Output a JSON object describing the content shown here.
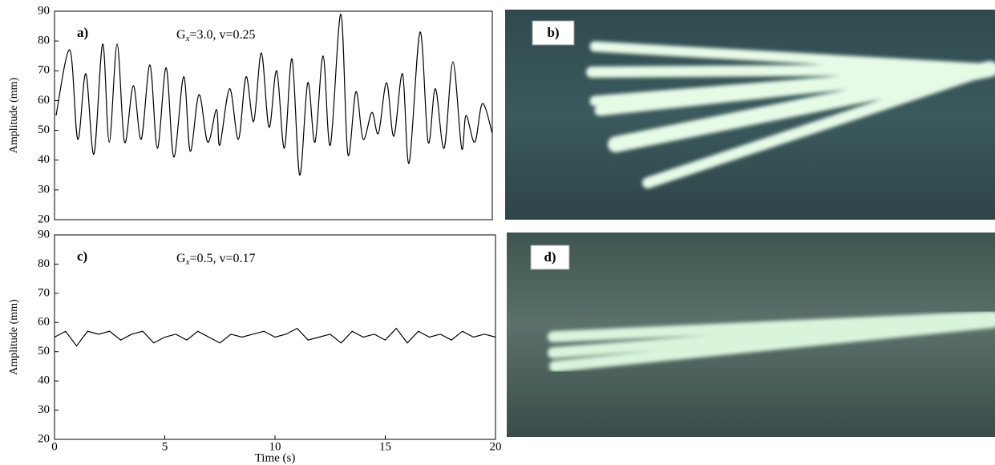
{
  "chart_data": [
    {
      "type": "line",
      "panel_label": "a)",
      "annotation": [
        "G",
        "x",
        "=3.0, v=0.25"
      ],
      "ylabel": "Amplitude (mm)",
      "xlim": [
        0,
        20
      ],
      "ylim": [
        20,
        90
      ],
      "yticks": [
        20,
        30,
        40,
        50,
        60,
        70,
        80,
        90
      ],
      "x": [
        0.07,
        0.7,
        1.06,
        1.43,
        1.8,
        2.2,
        2.5,
        2.86,
        3.2,
        3.6,
        3.96,
        4.36,
        4.7,
        5.1,
        5.45,
        5.9,
        6.2,
        6.6,
        7.0,
        7.4,
        7.55,
        8.0,
        8.4,
        8.75,
        9.1,
        9.45,
        9.8,
        10.15,
        10.5,
        10.85,
        11.2,
        11.57,
        11.9,
        12.27,
        12.6,
        13.08,
        13.4,
        13.77,
        14.1,
        14.5,
        14.8,
        15.17,
        15.5,
        15.9,
        16.2,
        16.7,
        17.07,
        17.4,
        17.8,
        18.2,
        18.6,
        18.8,
        19.2,
        19.55,
        20
      ],
      "series": [
        {
          "color": "#000000",
          "values": [
            55,
            77,
            47,
            69,
            42,
            79,
            46,
            79,
            46,
            65,
            47,
            72,
            44,
            71,
            41,
            68,
            43,
            62,
            46,
            57,
            45,
            64,
            47,
            68,
            53,
            76,
            51,
            70,
            44,
            74,
            35,
            66,
            46,
            75,
            45,
            89,
            42,
            63,
            47,
            56,
            49,
            66,
            48,
            69,
            39,
            83,
            46,
            64,
            44,
            73,
            44,
            55,
            46,
            59,
            49
          ]
        }
      ]
    },
    {
      "type": "line",
      "panel_label": "c)",
      "annotation": [
        "G",
        "x",
        "=0.5, v=0.17"
      ],
      "ylabel": "Amplitude (mm)",
      "xlabel": "Time (s)",
      "xlim": [
        0,
        20
      ],
      "ylim": [
        20,
        90
      ],
      "xticks": [
        0,
        5,
        10,
        15,
        20
      ],
      "yticks": [
        20,
        30,
        40,
        50,
        60,
        70,
        80,
        90
      ],
      "x": [
        0,
        0.5,
        1,
        1.5,
        2,
        2.5,
        3,
        3.5,
        4,
        4.5,
        5,
        5.5,
        6,
        6.5,
        7,
        7.5,
        8,
        8.5,
        9,
        9.5,
        10,
        10.5,
        11,
        11.5,
        12,
        12.5,
        13,
        13.5,
        14,
        14.5,
        15,
        15.5,
        16,
        16.5,
        17,
        17.5,
        18,
        18.5,
        19,
        19.5,
        20
      ],
      "series": [
        {
          "color": "#000000",
          "values": [
            55,
            57,
            52,
            57,
            56,
            57,
            54,
            56,
            57,
            53,
            55,
            56,
            54,
            57,
            55,
            53,
            56,
            55,
            56,
            57,
            55,
            56,
            58,
            54,
            55,
            56,
            53,
            57,
            55,
            56,
            54,
            58,
            53,
            57,
            55,
            56,
            54,
            57,
            55,
            56,
            55
          ]
        }
      ]
    }
  ],
  "photos": [
    {
      "label": "b)"
    },
    {
      "label": "d)"
    }
  ]
}
